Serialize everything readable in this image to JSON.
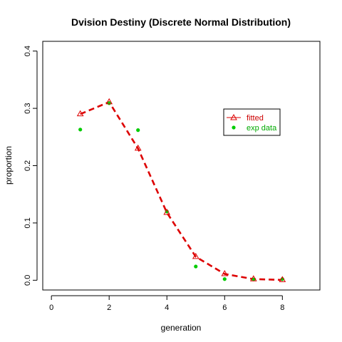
{
  "chart_data": {
    "type": "line",
    "title": "Dvision Destiny (Discrete Normal Distribution)",
    "xlabel": "generation",
    "ylabel": "proportion",
    "xlim": [
      -0.3,
      9.3
    ],
    "ylim": [
      -0.017,
      0.417
    ],
    "x_ticks": [
      "0",
      "2",
      "4",
      "6",
      "8"
    ],
    "y_ticks": [
      "0.0",
      "0.1",
      "0.2",
      "0.3",
      "0.4"
    ],
    "grid": false,
    "legend_position": "top-right",
    "series": [
      {
        "name": "fitted",
        "style": "dashed line with open triangles",
        "color": "#dd0000",
        "x": [
          1,
          2,
          3,
          4,
          5,
          6,
          7,
          8
        ],
        "y": [
          0.29,
          0.311,
          0.23,
          0.118,
          0.041,
          0.011,
          0.002,
          0.0005
        ]
      },
      {
        "name": "exp data",
        "style": "filled circles",
        "color": "#00cc00",
        "x": [
          1,
          2,
          3,
          4,
          5,
          6,
          7,
          8
        ],
        "y": [
          0.263,
          0.309,
          0.262,
          0.12,
          0.024,
          0.002,
          0.0015,
          0.002
        ]
      }
    ]
  }
}
